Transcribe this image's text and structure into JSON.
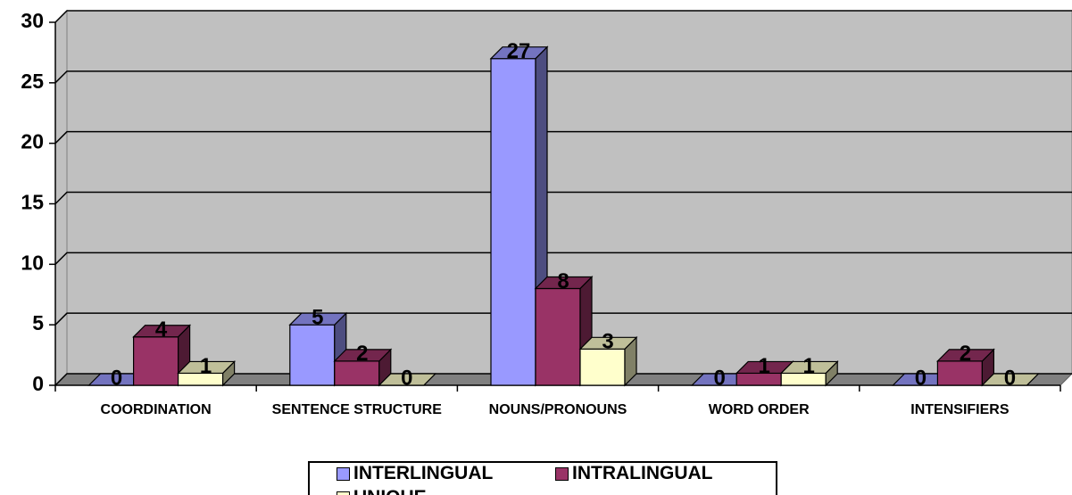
{
  "chart_data": {
    "type": "bar3d",
    "categories": [
      "COORDINATION",
      "SENTENCE STRUCTURE",
      "NOUNS/PRONOUNS",
      "WORD ORDER",
      "INTENSIFIERS"
    ],
    "series": [
      {
        "name": "INTERLINGUAL",
        "color": "#9999ff",
        "values": [
          0,
          5,
          27,
          0,
          0
        ]
      },
      {
        "name": "INTRALINGUAL",
        "color": "#993366",
        "values": [
          4,
          2,
          8,
          1,
          2
        ]
      },
      {
        "name": "UNIQUE",
        "color": "#ffffcc",
        "values": [
          1,
          0,
          3,
          1,
          0
        ]
      }
    ],
    "ylim": [
      0,
      30
    ],
    "yticks": [
      0,
      5,
      10,
      15,
      20,
      25,
      30
    ],
    "grid": true,
    "legend": "bottom"
  }
}
